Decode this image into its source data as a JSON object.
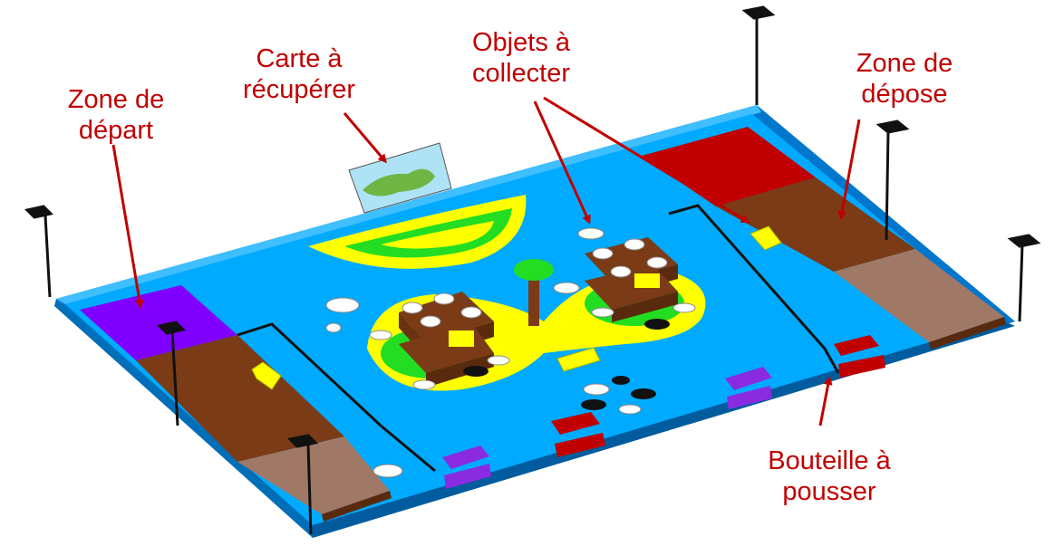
{
  "labels": {
    "start_zone": {
      "line1": "Zone de",
      "line2": "départ"
    },
    "map": {
      "line1": "Carte à",
      "line2": "récupérer"
    },
    "objects": {
      "line1": "Objets à",
      "line2": "collecter"
    },
    "drop_zone": {
      "line1": "Zone de",
      "line2": "dépose"
    },
    "bottle": {
      "line1": "Bouteille à",
      "line2": "pousser"
    }
  },
  "colors": {
    "table": "#00aaff",
    "table_edge": "#0077cc",
    "start_zone": "#8000ff",
    "drop_zone": "#c00000",
    "ramp": "#7a3b16",
    "sand": "#ffff00",
    "grass": "#22dd22",
    "label": "#c00000",
    "arrow": "#c00000"
  }
}
